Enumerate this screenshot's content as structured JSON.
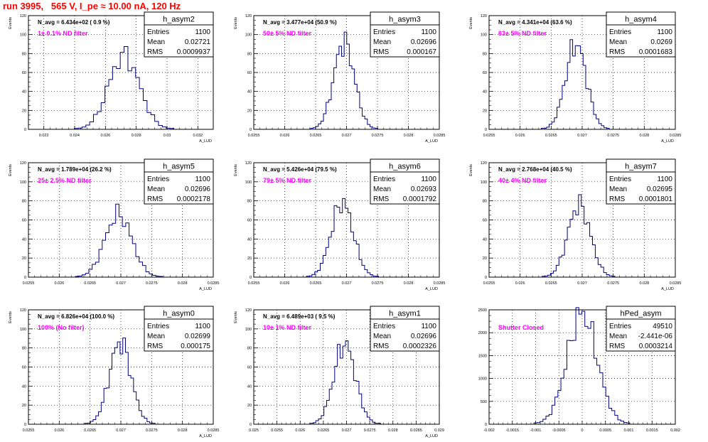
{
  "header": {
    "run_title": "run 3995,   565 V, I_pe ≈ 10.00 nA, 120 Hz"
  },
  "colors": {
    "histogram": "#000080",
    "annotation": "#ff00ff",
    "title": "#ff0000",
    "frame": "#000000"
  },
  "stats_labels": {
    "entries": "Entries",
    "mean": "Mean",
    "rms": "RMS"
  },
  "chart_data": [
    {
      "type": "histogram",
      "name": "h_asym2",
      "stats": {
        "entries": "1100",
        "mean": "0.02721",
        "rms": "0.0009937"
      },
      "navg": "N_avg = 6.434e+02 ( 0.9 %)",
      "filter": "1± 0.1% ND filter",
      "ylabel": "Events",
      "xlabel": "A_LUD",
      "xlim": [
        0.021,
        0.033
      ],
      "ylim": [
        0,
        120
      ],
      "xticks": [
        0.022,
        0.024,
        0.026,
        0.028,
        0.03,
        0.032
      ],
      "xticklabels": [
        "0.022",
        "0.024",
        "0.026",
        "0.028",
        "0.03",
        "0.032"
      ],
      "yticks": [
        0,
        20,
        40,
        60,
        80,
        100,
        120
      ],
      "grid": true,
      "legend": "top-right",
      "peak_x": 0.02721,
      "peak_y": 78,
      "rms": 0.0009937,
      "bins_per_sigma": 4
    },
    {
      "type": "histogram",
      "name": "h_asym3",
      "stats": {
        "entries": "1100",
        "mean": "0.02696",
        "rms": "0.000167"
      },
      "navg": "N_avg = 3.477e+04 (50.9 %)",
      "filter": "50± 5% ND filter",
      "ylabel": "Events",
      "xlabel": "A_LUD",
      "xlim": [
        0.0255,
        0.0285
      ],
      "ylim": [
        0,
        120
      ],
      "xticks": [
        0.0255,
        0.026,
        0.0265,
        0.027,
        0.0275,
        0.028,
        0.0285
      ],
      "xticklabels": [
        "0.0255",
        "0.026",
        "0.0265",
        "0.027",
        "0.0275",
        "0.028",
        "0.0285"
      ],
      "yticks": [
        0,
        20,
        40,
        60,
        80,
        100,
        120
      ],
      "grid": true,
      "legend": "top-right",
      "peak_x": 0.02696,
      "peak_y": 92,
      "rms": 0.000167,
      "bins_per_sigma": 4
    },
    {
      "type": "histogram",
      "name": "h_asym4",
      "stats": {
        "entries": "1100",
        "mean": "0.0269",
        "rms": "0.0001683"
      },
      "navg": "N_avg = 4.341e+04 (63.6 %)",
      "filter": "63± 5% ND filter",
      "ylabel": "Events",
      "xlabel": "A_LUD",
      "xlim": [
        0.0255,
        0.0285
      ],
      "ylim": [
        0,
        120
      ],
      "xticks": [
        0.0255,
        0.026,
        0.0265,
        0.027,
        0.0275,
        0.028,
        0.0285
      ],
      "xticklabels": [
        "0.0255",
        "0.026",
        "0.0265",
        "0.027",
        "0.0275",
        "0.028",
        "0.0285"
      ],
      "yticks": [
        0,
        20,
        40,
        60,
        80,
        100,
        120
      ],
      "grid": true,
      "legend": "top-right",
      "peak_x": 0.0269,
      "peak_y": 90,
      "rms": 0.0001683,
      "bins_per_sigma": 4
    },
    {
      "type": "histogram",
      "name": "h_asym5",
      "stats": {
        "entries": "1100",
        "mean": "0.02696",
        "rms": "0.0002178"
      },
      "navg": "N_avg = 1.789e+04 (26.2 %)",
      "filter": "25± 2.5% ND filter",
      "ylabel": "Events",
      "xlabel": "A_LUD",
      "xlim": [
        0.0255,
        0.0285
      ],
      "ylim": [
        0,
        120
      ],
      "xticks": [
        0.0255,
        0.026,
        0.0265,
        0.027,
        0.0275,
        0.028,
        0.0285
      ],
      "xticklabels": [
        "0.0255",
        "0.026",
        "0.0265",
        "0.027",
        "0.0275",
        "0.028",
        "0.0285"
      ],
      "yticks": [
        0,
        20,
        40,
        60,
        80,
        100,
        120
      ],
      "grid": true,
      "legend": "top-right",
      "peak_x": 0.02696,
      "peak_y": 66,
      "rms": 0.0002178,
      "bins_per_sigma": 4
    },
    {
      "type": "histogram",
      "name": "h_asym6",
      "stats": {
        "entries": "1100",
        "mean": "0.02693",
        "rms": "0.0001792"
      },
      "navg": "N_avg = 5.426e+04 (79.5 %)",
      "filter": "79± 5% ND filter",
      "ylabel": "Events",
      "xlabel": "A_LUD",
      "xlim": [
        0.0255,
        0.0285
      ],
      "ylim": [
        0,
        120
      ],
      "xticks": [
        0.0255,
        0.026,
        0.0265,
        0.027,
        0.0275,
        0.028,
        0.0285
      ],
      "xticklabels": [
        "0.0255",
        "0.026",
        "0.0265",
        "0.027",
        "0.0275",
        "0.028",
        "0.0285"
      ],
      "yticks": [
        0,
        20,
        40,
        60,
        80,
        100,
        120
      ],
      "grid": true,
      "legend": "top-right",
      "peak_x": 0.02693,
      "peak_y": 78,
      "rms": 0.0001792,
      "bins_per_sigma": 4
    },
    {
      "type": "histogram",
      "name": "h_asym7",
      "stats": {
        "entries": "1100",
        "mean": "0.02695",
        "rms": "0.0001801"
      },
      "navg": "N_avg = 2.768e+04 (40.5 %)",
      "filter": "40± 4% ND filter",
      "ylabel": "Events",
      "xlabel": "A_LUD",
      "xlim": [
        0.0255,
        0.0285
      ],
      "ylim": [
        0,
        120
      ],
      "xticks": [
        0.0255,
        0.026,
        0.0265,
        0.027,
        0.0275,
        0.028,
        0.0285
      ],
      "xticklabels": [
        "0.0255",
        "0.026",
        "0.0265",
        "0.027",
        "0.0275",
        "0.028",
        "0.0285"
      ],
      "yticks": [
        0,
        20,
        40,
        60,
        80,
        100,
        120
      ],
      "grid": true,
      "legend": "top-right",
      "peak_x": 0.02695,
      "peak_y": 76,
      "rms": 0.0001801,
      "bins_per_sigma": 4
    },
    {
      "type": "histogram",
      "name": "h_asym0",
      "stats": {
        "entries": "1100",
        "mean": "0.02699",
        "rms": "0.000175"
      },
      "navg": "N_avg = 6.826e+04 (100.0 %)",
      "filter": "100% (No filter)",
      "ylabel": "Events",
      "xlabel": "A_LUD",
      "xlim": [
        0.0255,
        0.0285
      ],
      "ylim": [
        0,
        120
      ],
      "xticks": [
        0.0255,
        0.026,
        0.0265,
        0.027,
        0.0275,
        0.028,
        0.0285
      ],
      "xticklabels": [
        "0.0255",
        "0.026",
        "0.0265",
        "0.027",
        "0.0275",
        "0.028",
        "0.0285"
      ],
      "yticks": [
        0,
        20,
        40,
        60,
        80,
        100,
        120
      ],
      "grid": true,
      "legend": "top-right",
      "peak_x": 0.02699,
      "peak_y": 86,
      "rms": 0.000175,
      "bins_per_sigma": 4
    },
    {
      "type": "histogram",
      "name": "h_asym1",
      "stats": {
        "entries": "1100",
        "mean": "0.02696",
        "rms": "0.0002326"
      },
      "navg": "N_avg = 6.489e+03 ( 9.5 %)",
      "filter": "10± 1% ND filter",
      "ylabel": "Events",
      "xlabel": "A_LUD",
      "xlim": [
        0.025,
        0.029
      ],
      "ylim": [
        0,
        120
      ],
      "xticks": [
        0.025,
        0.0255,
        0.026,
        0.0265,
        0.027,
        0.0275,
        0.028,
        0.0285,
        0.029
      ],
      "xticklabels": [
        "0.025",
        "0.0255",
        "0.026",
        "0.0265",
        "0.027",
        "0.0275",
        "0.028",
        "0.0285",
        "0.029"
      ],
      "yticks": [
        0,
        20,
        40,
        60,
        80,
        100,
        120
      ],
      "grid": true,
      "legend": "top-right",
      "peak_x": 0.02696,
      "peak_y": 84,
      "rms": 0.0002326,
      "bins_per_sigma": 4
    },
    {
      "type": "histogram",
      "name": "hPed_asym",
      "stats": {
        "entries": "49510",
        "mean": "-2.441e-06",
        "rms": "0.0003214"
      },
      "navg": "",
      "filter": "Shutter Closed",
      "ylabel": "",
      "xlabel": "",
      "xlim": [
        -0.002,
        0.002
      ],
      "ylim": [
        0,
        2500
      ],
      "xticks": [
        -0.002,
        -0.0015,
        -0.001,
        -0.0005,
        0,
        0.0005,
        0.001,
        0.0015,
        0.002
      ],
      "xticklabels": [
        "-0.002",
        "-0.0015",
        "-0.001",
        "-0.0005",
        "0",
        "0.0005",
        "0.001",
        "0.0015",
        "0.002"
      ],
      "yticks": [
        0,
        500,
        1000,
        1500,
        2000,
        2500
      ],
      "grid": true,
      "legend": "top-right",
      "peak_x": -2.441e-06,
      "peak_y": 2420,
      "rms": 0.0003214,
      "bins_per_sigma": 5
    }
  ]
}
